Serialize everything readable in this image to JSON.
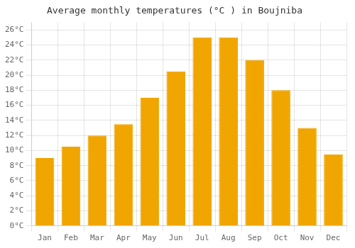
{
  "chart_data": {
    "type": "bar",
    "title": "Average monthly temperatures (°C ) in Boujniba",
    "categories": [
      "Jan",
      "Feb",
      "Mar",
      "Apr",
      "May",
      "Jun",
      "Jul",
      "Aug",
      "Sep",
      "Oct",
      "Nov",
      "Dec"
    ],
    "values": [
      9.0,
      10.5,
      12.0,
      13.5,
      17.0,
      20.5,
      25.0,
      25.0,
      22.0,
      18.0,
      13.0,
      9.5
    ],
    "color": "#F0A500",
    "ylim": [
      0,
      27
    ],
    "yticks": [
      {
        "value": 0,
        "label": "0°C"
      },
      {
        "value": 2,
        "label": "2°C"
      },
      {
        "value": 4,
        "label": "4°C"
      },
      {
        "value": 6,
        "label": "6°C"
      },
      {
        "value": 8,
        "label": "8°C"
      },
      {
        "value": 10,
        "label": "10°C"
      },
      {
        "value": 12,
        "label": "12°C"
      },
      {
        "value": 14,
        "label": "14°C"
      },
      {
        "value": 16,
        "label": "16°C"
      },
      {
        "value": 18,
        "label": "18°C"
      },
      {
        "value": 20,
        "label": "20°C"
      },
      {
        "value": 22,
        "label": "22°C"
      },
      {
        "value": 24,
        "label": "24°C"
      },
      {
        "value": 26,
        "label": "26°C"
      }
    ],
    "grid": true
  }
}
